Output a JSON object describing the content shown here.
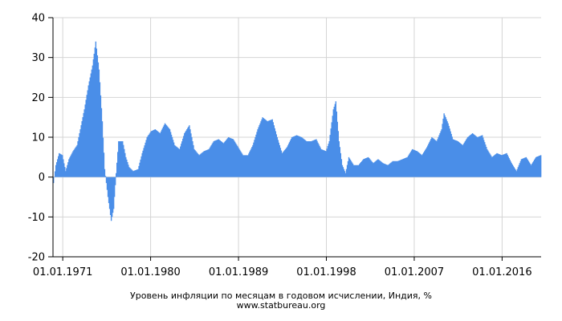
{
  "chart_data": {
    "type": "bar",
    "title": "Уровень инфляции по месяцам в годовом исчислении, Индия, %",
    "source": "www.statbureau.org",
    "xlabel": "",
    "ylabel": "",
    "ylim": [
      -20,
      40
    ],
    "y_ticks": [
      "-20",
      "-10",
      "0",
      "10",
      "20",
      "30",
      "40"
    ],
    "x_range": [
      "1970-01-01",
      "2019-12-31"
    ],
    "x_ticks": [
      "01.01.1971",
      "01.01.1980",
      "01.01.1989",
      "01.01.1998",
      "01.01.2007",
      "01.01.2016"
    ],
    "grid": true,
    "bar_color": "#4a8ee8",
    "series_points": [
      [
        "1970-01",
        -1.5
      ],
      [
        "1970-04",
        3
      ],
      [
        "1970-08",
        6
      ],
      [
        "1970-12",
        5.5
      ],
      [
        "1971-04",
        1.5
      ],
      [
        "1971-08",
        4.5
      ],
      [
        "1972-01",
        6.5
      ],
      [
        "1972-06",
        8
      ],
      [
        "1972-10",
        12
      ],
      [
        "1973-03",
        17
      ],
      [
        "1973-08",
        23
      ],
      [
        "1974-01",
        28
      ],
      [
        "1974-05",
        34
      ],
      [
        "1974-09",
        27
      ],
      [
        "1975-01",
        14
      ],
      [
        "1975-04",
        2
      ],
      [
        "1975-08",
        -5
      ],
      [
        "1975-12",
        -11
      ],
      [
        "1976-03",
        -8
      ],
      [
        "1976-06",
        1
      ],
      [
        "1976-09",
        9
      ],
      [
        "1977-02",
        9
      ],
      [
        "1977-06",
        5
      ],
      [
        "1977-10",
        2.5
      ],
      [
        "1978-03",
        1.5
      ],
      [
        "1978-09",
        2
      ],
      [
        "1979-02",
        6
      ],
      [
        "1979-08",
        10
      ],
      [
        "1980-01",
        11.5
      ],
      [
        "1980-06",
        12
      ],
      [
        "1980-12",
        11
      ],
      [
        "1981-06",
        13.5
      ],
      [
        "1981-12",
        12
      ],
      [
        "1982-06",
        8
      ],
      [
        "1982-12",
        7
      ],
      [
        "1983-06",
        11
      ],
      [
        "1983-12",
        13
      ],
      [
        "1984-06",
        7
      ],
      [
        "1984-12",
        5.5
      ],
      [
        "1985-06",
        6.5
      ],
      [
        "1985-12",
        7
      ],
      [
        "1986-06",
        9
      ],
      [
        "1986-12",
        9.5
      ],
      [
        "1987-06",
        8.5
      ],
      [
        "1987-12",
        10
      ],
      [
        "1988-06",
        9.5
      ],
      [
        "1988-12",
        7.5
      ],
      [
        "1989-06",
        5.5
      ],
      [
        "1989-12",
        5.5
      ],
      [
        "1990-06",
        8
      ],
      [
        "1990-12",
        12
      ],
      [
        "1991-06",
        15
      ],
      [
        "1991-12",
        14
      ],
      [
        "1992-06",
        14.5
      ],
      [
        "1992-12",
        10
      ],
      [
        "1993-06",
        6
      ],
      [
        "1993-12",
        7.5
      ],
      [
        "1994-06",
        10
      ],
      [
        "1994-12",
        10.5
      ],
      [
        "1995-06",
        10
      ],
      [
        "1995-12",
        9
      ],
      [
        "1996-06",
        9
      ],
      [
        "1996-12",
        9.5
      ],
      [
        "1997-06",
        7
      ],
      [
        "1997-12",
        6.5
      ],
      [
        "1998-04",
        9
      ],
      [
        "1998-09",
        17
      ],
      [
        "1998-12",
        19
      ],
      [
        "1999-04",
        9
      ],
      [
        "1999-08",
        3
      ],
      [
        "1999-12",
        1
      ],
      [
        "2000-04",
        5
      ],
      [
        "2000-10",
        3
      ],
      [
        "2001-04",
        3
      ],
      [
        "2001-10",
        4.5
      ],
      [
        "2002-04",
        5
      ],
      [
        "2002-10",
        3.5
      ],
      [
        "2003-04",
        4.5
      ],
      [
        "2003-10",
        3.5
      ],
      [
        "2004-04",
        3
      ],
      [
        "2004-10",
        4
      ],
      [
        "2005-04",
        4
      ],
      [
        "2005-10",
        4.5
      ],
      [
        "2006-04",
        5
      ],
      [
        "2006-10",
        7
      ],
      [
        "2007-04",
        6.5
      ],
      [
        "2007-10",
        5.5
      ],
      [
        "2008-04",
        7.5
      ],
      [
        "2008-10",
        10
      ],
      [
        "2009-04",
        9
      ],
      [
        "2009-10",
        12
      ],
      [
        "2010-01",
        16
      ],
      [
        "2010-06",
        13.5
      ],
      [
        "2010-12",
        9.5
      ],
      [
        "2011-06",
        9
      ],
      [
        "2011-12",
        8
      ],
      [
        "2012-06",
        10
      ],
      [
        "2012-12",
        11
      ],
      [
        "2013-06",
        10
      ],
      [
        "2013-12",
        10.5
      ],
      [
        "2014-06",
        7
      ],
      [
        "2014-12",
        5
      ],
      [
        "2015-06",
        6
      ],
      [
        "2015-12",
        5.5
      ],
      [
        "2016-06",
        6
      ],
      [
        "2016-12",
        3.5
      ],
      [
        "2017-06",
        1.5
      ],
      [
        "2017-12",
        4.5
      ],
      [
        "2018-06",
        5
      ],
      [
        "2018-12",
        3
      ],
      [
        "2019-06",
        5
      ],
      [
        "2019-12",
        5.5
      ]
    ]
  }
}
